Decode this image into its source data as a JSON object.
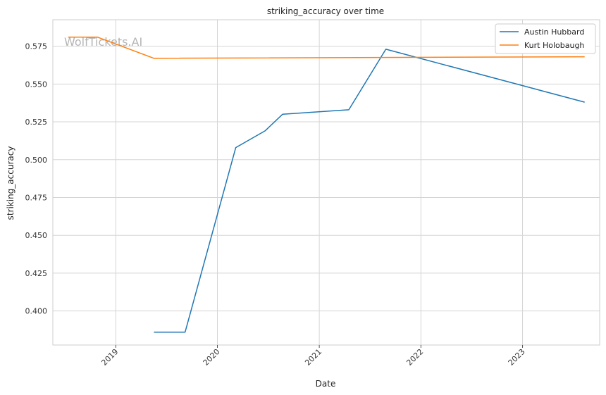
{
  "watermark": "WolfTickets.AI",
  "chart_data": {
    "type": "line",
    "title": "striking_accuracy over time",
    "xlabel": "Date",
    "ylabel": "striking_accuracy",
    "x_ticks": [
      "2019",
      "2020",
      "2021",
      "2022",
      "2023"
    ],
    "y_ticks": [
      "0.400",
      "0.425",
      "0.450",
      "0.475",
      "0.500",
      "0.525",
      "0.550",
      "0.575"
    ],
    "xlim": [
      "2018-05-20",
      "2023-10-05"
    ],
    "ylim": [
      0.3775,
      0.5925
    ],
    "grid": true,
    "legend_position": "top-right",
    "colors": {
      "Austin Hubbard": "#1f77b4",
      "Kurt Holobaugh": "#ff7f0e"
    },
    "series": [
      {
        "name": "Austin Hubbard",
        "points": [
          {
            "x": "2019-05-18",
            "y": 0.386
          },
          {
            "x": "2019-09-07",
            "y": 0.386
          },
          {
            "x": "2020-03-07",
            "y": 0.508
          },
          {
            "x": "2020-06-20",
            "y": 0.519
          },
          {
            "x": "2020-08-22",
            "y": 0.53
          },
          {
            "x": "2021-04-17",
            "y": 0.533
          },
          {
            "x": "2021-08-28",
            "y": 0.573
          },
          {
            "x": "2023-08-12",
            "y": 0.538
          }
        ]
      },
      {
        "name": "Kurt Holobaugh",
        "points": [
          {
            "x": "2018-07-14",
            "y": 0.581
          },
          {
            "x": "2018-10-27",
            "y": 0.581
          },
          {
            "x": "2019-05-18",
            "y": 0.567
          },
          {
            "x": "2023-08-12",
            "y": 0.568
          }
        ]
      }
    ]
  }
}
